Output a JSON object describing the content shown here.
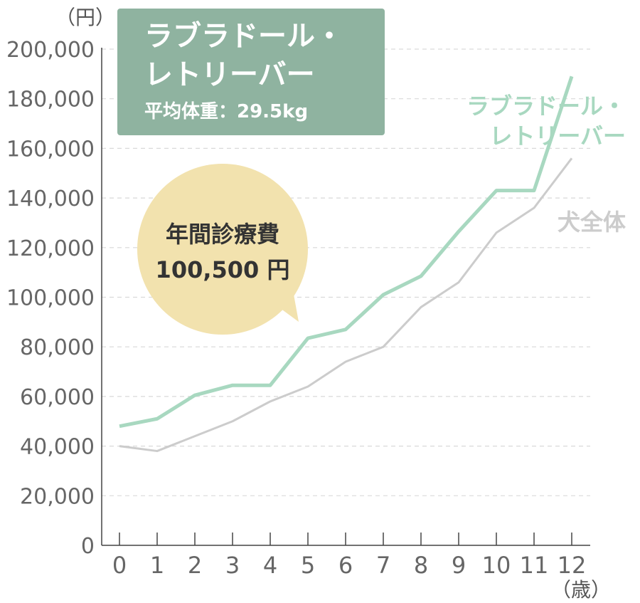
{
  "chart_data": {
    "type": "line",
    "y_unit": "（円）",
    "x_unit": "（歳）",
    "title_box": {
      "line1": "ラブラドール・",
      "line2": "レトリーバー",
      "subtitle": "平均体重：29.5kg",
      "color": "#8fb3a0"
    },
    "bubble": {
      "line1": "年間診療費",
      "line2": "100,500 円",
      "color": "#f2e2ae"
    },
    "x": [
      0,
      1,
      2,
      3,
      4,
      5,
      6,
      7,
      8,
      9,
      10,
      11,
      12
    ],
    "xtick_labels": [
      "0",
      "1",
      "2",
      "3",
      "4",
      "5",
      "6",
      "7",
      "8",
      "9",
      "10",
      "11",
      "12"
    ],
    "ylim": [
      0,
      200000
    ],
    "ytick_labels": [
      "0",
      "20,000",
      "40,000",
      "60,000",
      "80,000",
      "100,000",
      "120,000",
      "140,000",
      "160,000",
      "180,000",
      "200,000"
    ],
    "grid": true,
    "series": [
      {
        "name": "ラブラドール・レトリーバー",
        "label_line1": "ラブラドール・",
        "label_line2": "レトリーバー",
        "color": "#a8d8c0",
        "values": [
          48000,
          51000,
          60500,
          64500,
          64500,
          83500,
          87000,
          101000,
          108500,
          126500,
          143000,
          143000,
          189000
        ]
      },
      {
        "name": "犬全体",
        "label_line1": "犬全体",
        "color": "#cccccc",
        "values": [
          40000,
          38000,
          44000,
          50000,
          58000,
          64000,
          74000,
          80000,
          96000,
          106000,
          126000,
          136000,
          156000
        ]
      }
    ]
  }
}
